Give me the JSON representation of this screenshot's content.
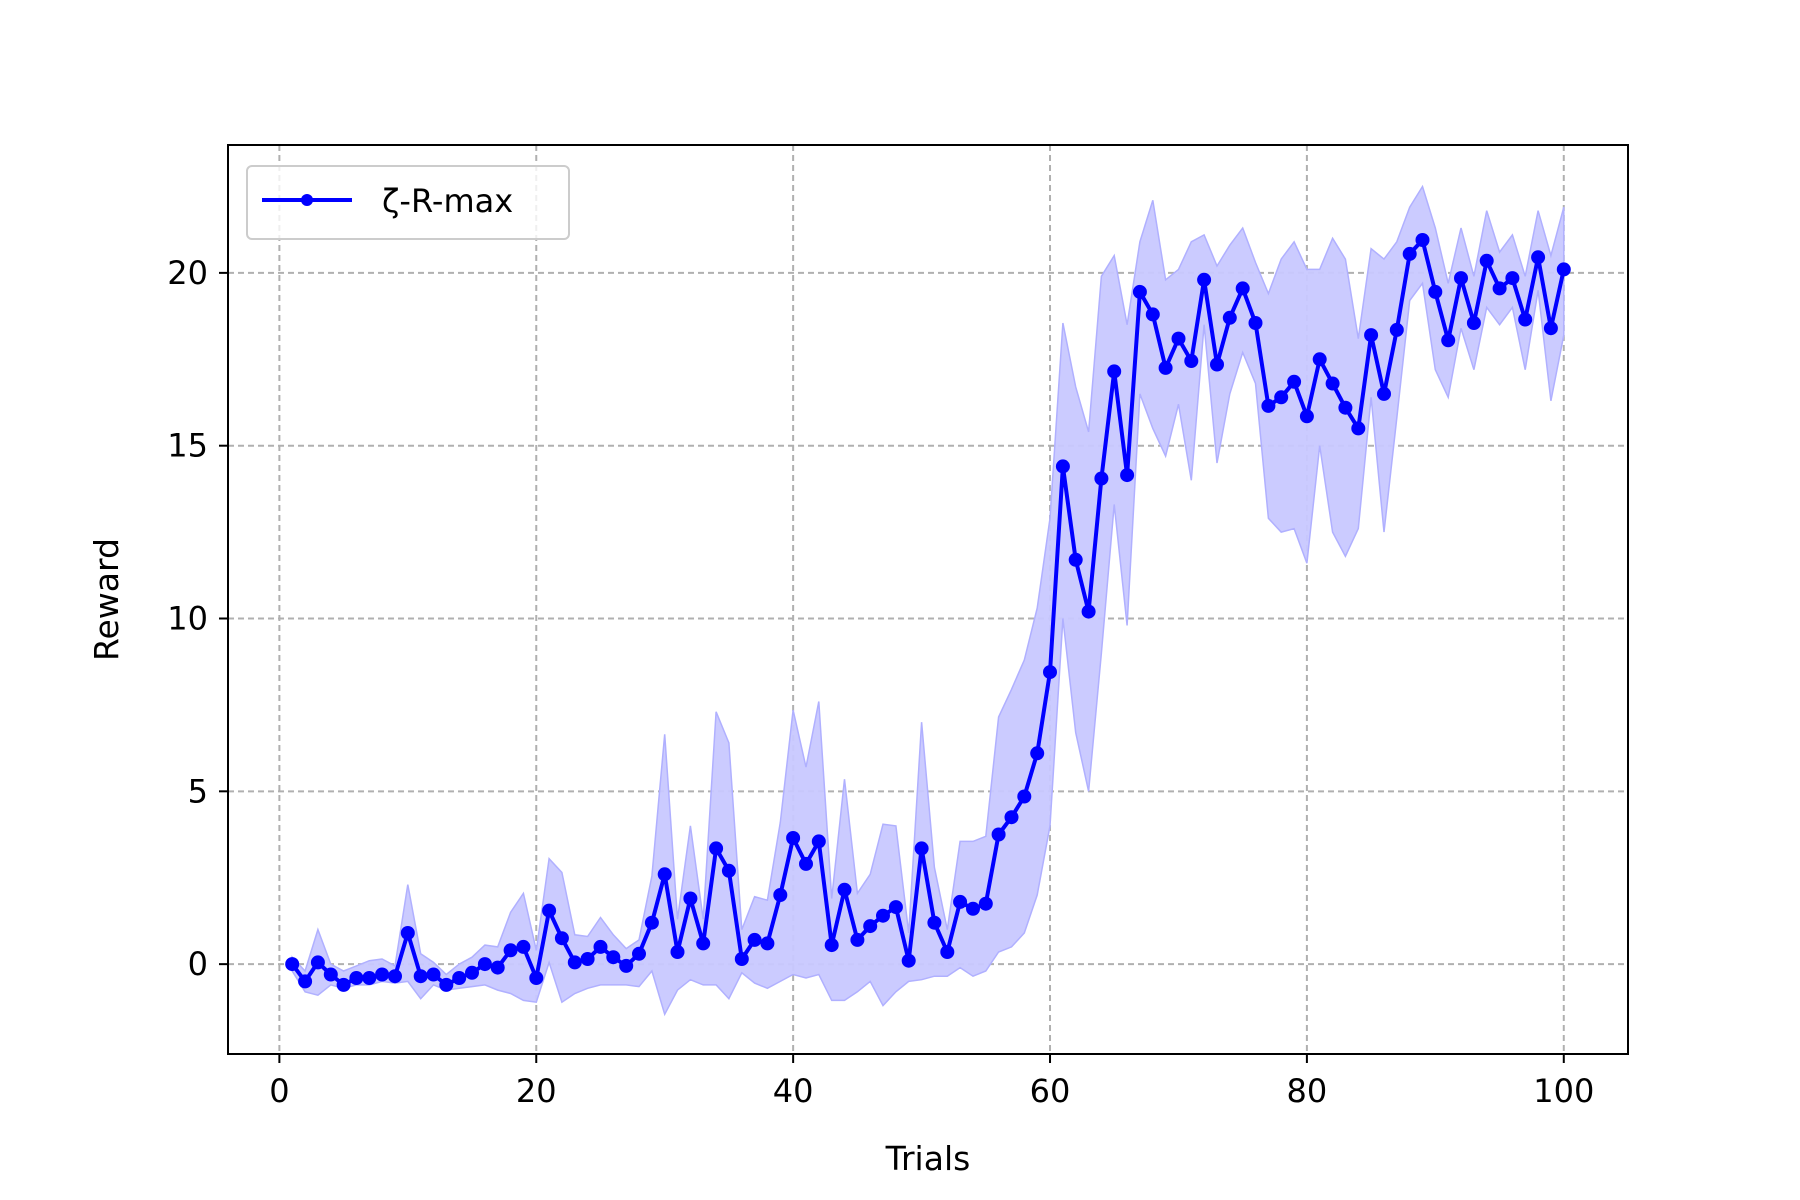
{
  "chart_data": {
    "type": "line",
    "title": "",
    "xlabel": "Trials",
    "ylabel": "Reward",
    "xlim": [
      -4,
      105
    ],
    "ylim": [
      -2.6,
      23.7
    ],
    "xticks": [
      0,
      20,
      40,
      60,
      80,
      100
    ],
    "yticks": [
      0,
      5,
      10,
      15,
      20
    ],
    "grid": true,
    "legend_position": "top-left",
    "colors": {
      "line": "#0000ff",
      "band": "#c8c8ff",
      "grid": "#b0b0b0"
    },
    "series": [
      {
        "name": "ζ-R-max",
        "x": [
          1,
          2,
          3,
          4,
          5,
          6,
          7,
          8,
          9,
          10,
          11,
          12,
          13,
          14,
          15,
          16,
          17,
          18,
          19,
          20,
          21,
          22,
          23,
          24,
          25,
          26,
          27,
          28,
          29,
          30,
          31,
          32,
          33,
          34,
          35,
          36,
          37,
          38,
          39,
          40,
          41,
          42,
          43,
          44,
          45,
          46,
          47,
          48,
          49,
          50,
          51,
          52,
          53,
          54,
          55,
          56,
          57,
          58,
          59,
          60,
          61,
          62,
          63,
          64,
          65,
          66,
          67,
          68,
          69,
          70,
          71,
          72,
          73,
          74,
          75,
          76,
          77,
          78,
          79,
          80,
          81,
          82,
          83,
          84,
          85,
          86,
          87,
          88,
          89,
          90,
          91,
          92,
          93,
          94,
          95,
          96,
          97,
          98,
          99,
          100
        ],
        "y": [
          0.0,
          -0.5,
          0.05,
          -0.3,
          -0.6,
          -0.4,
          -0.4,
          -0.3,
          -0.35,
          0.9,
          -0.35,
          -0.3,
          -0.6,
          -0.4,
          -0.25,
          0.0,
          -0.1,
          0.4,
          0.5,
          -0.4,
          1.55,
          0.75,
          0.05,
          0.15,
          0.5,
          0.2,
          -0.05,
          0.3,
          1.2,
          2.6,
          0.35,
          1.9,
          0.6,
          3.35,
          2.7,
          0.15,
          0.7,
          0.6,
          2.0,
          3.65,
          2.9,
          3.55,
          0.55,
          2.15,
          0.7,
          1.1,
          1.4,
          1.65,
          0.1,
          3.35,
          1.2,
          0.35,
          1.8,
          1.6,
          1.75,
          3.75,
          4.25,
          4.85,
          6.1,
          8.45,
          14.4,
          11.7,
          10.2,
          14.05,
          17.15,
          14.15,
          19.45,
          18.8,
          17.25,
          18.1,
          17.45,
          19.8,
          17.35,
          18.7,
          19.55,
          18.55,
          16.15,
          16.4,
          16.85,
          15.85,
          17.5,
          16.8,
          16.1,
          15.5,
          18.2,
          16.5,
          18.35,
          20.55,
          20.95,
          19.45,
          18.05,
          19.85,
          18.55,
          20.35,
          19.55,
          19.85,
          18.65,
          20.45,
          18.4,
          20.1
        ],
        "lower": [
          -0.2,
          -0.8,
          -0.9,
          -0.6,
          -0.7,
          -0.6,
          -0.6,
          -0.5,
          -0.55,
          -0.5,
          -1.0,
          -0.6,
          -0.75,
          -0.7,
          -0.65,
          -0.6,
          -0.75,
          -0.85,
          -1.05,
          -1.1,
          0.05,
          -1.1,
          -0.85,
          -0.7,
          -0.6,
          -0.6,
          -0.6,
          -0.65,
          -0.2,
          -1.45,
          -0.75,
          -0.45,
          -0.6,
          -0.6,
          -1.0,
          -0.25,
          -0.55,
          -0.7,
          -0.5,
          -0.3,
          -0.4,
          -0.3,
          -1.05,
          -1.05,
          -0.8,
          -0.5,
          -1.2,
          -0.8,
          -0.5,
          -0.45,
          -0.35,
          -0.35,
          -0.1,
          -0.35,
          -0.2,
          0.35,
          0.5,
          0.9,
          2.0,
          4.0,
          10.0,
          6.7,
          5.0,
          9.0,
          13.3,
          9.8,
          16.5,
          15.5,
          14.7,
          16.2,
          14.0,
          18.5,
          14.5,
          16.5,
          17.7,
          16.8,
          12.9,
          12.5,
          12.6,
          11.6,
          15.0,
          12.5,
          11.8,
          12.6,
          16.4,
          12.5,
          15.8,
          19.2,
          19.7,
          17.2,
          16.4,
          18.4,
          17.2,
          19.0,
          18.5,
          19.0,
          17.2,
          19.5,
          16.3,
          18.2
        ],
        "upper": [
          0.2,
          -0.2,
          1.0,
          0.0,
          -0.2,
          -0.05,
          0.1,
          0.15,
          -0.05,
          2.3,
          0.3,
          0.05,
          -0.3,
          0.0,
          0.2,
          0.55,
          0.5,
          1.5,
          2.05,
          0.4,
          3.05,
          2.65,
          0.85,
          0.8,
          1.35,
          0.85,
          0.45,
          0.7,
          2.55,
          6.65,
          1.3,
          4.0,
          1.3,
          7.3,
          6.4,
          1.0,
          1.95,
          1.85,
          4.1,
          7.35,
          5.7,
          7.6,
          1.9,
          5.35,
          2.05,
          2.6,
          4.05,
          4.0,
          0.9,
          7.0,
          2.8,
          1.0,
          3.55,
          3.55,
          3.7,
          7.15,
          7.95,
          8.8,
          10.3,
          12.9,
          18.55,
          16.7,
          15.4,
          19.9,
          20.5,
          18.5,
          20.9,
          22.1,
          19.8,
          20.1,
          20.9,
          21.1,
          20.2,
          20.8,
          21.3,
          20.3,
          19.4,
          20.4,
          20.9,
          20.1,
          20.1,
          21.0,
          20.4,
          18.1,
          20.7,
          20.4,
          20.9,
          21.9,
          22.5,
          21.3,
          19.7,
          21.3,
          19.9,
          21.8,
          20.6,
          21.1,
          19.9,
          21.8,
          20.5,
          21.9
        ]
      }
    ]
  }
}
